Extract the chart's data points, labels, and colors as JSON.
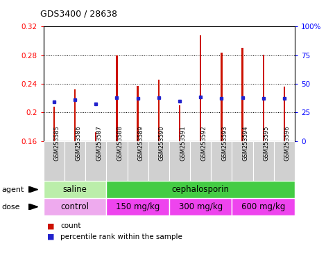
{
  "title": "GDS3400 / 28638",
  "samples": [
    "GSM253585",
    "GSM253586",
    "GSM253587",
    "GSM253588",
    "GSM253589",
    "GSM253590",
    "GSM253591",
    "GSM253592",
    "GSM253593",
    "GSM253594",
    "GSM253595",
    "GSM253596"
  ],
  "bar_values": [
    0.208,
    0.232,
    0.172,
    0.28,
    0.237,
    0.246,
    0.21,
    0.308,
    0.284,
    0.29,
    0.281,
    0.236
  ],
  "percentile_values": [
    0.215,
    0.218,
    0.212,
    0.221,
    0.22,
    0.221,
    0.216,
    0.222,
    0.22,
    0.221,
    0.22,
    0.22
  ],
  "ylim": [
    0.16,
    0.32
  ],
  "yticks": [
    0.16,
    0.2,
    0.24,
    0.28,
    0.32
  ],
  "y2ticks": [
    0,
    25,
    50,
    75,
    100
  ],
  "y2labels": [
    "0",
    "25",
    "50",
    "75",
    "100%"
  ],
  "bar_color": "#cc1100",
  "percentile_color": "#2222cc",
  "agent_groups": [
    {
      "label": "saline",
      "start": 0,
      "end": 3,
      "color": "#bbeeaa"
    },
    {
      "label": "cephalosporin",
      "start": 3,
      "end": 12,
      "color": "#44cc44"
    }
  ],
  "dose_groups": [
    {
      "label": "control",
      "start": 0,
      "end": 3,
      "color": "#eeaaee"
    },
    {
      "label": "150 mg/kg",
      "start": 3,
      "end": 6,
      "color": "#ee44ee"
    },
    {
      "label": "300 mg/kg",
      "start": 6,
      "end": 9,
      "color": "#ee44ee"
    },
    {
      "label": "600 mg/kg",
      "start": 9,
      "end": 12,
      "color": "#ee44ee"
    }
  ],
  "legend_items": [
    {
      "label": "count",
      "color": "#cc1100"
    },
    {
      "label": "percentile rank within the sample",
      "color": "#2222cc"
    }
  ],
  "bar_baseline": 0.16,
  "bar_width": 0.08
}
